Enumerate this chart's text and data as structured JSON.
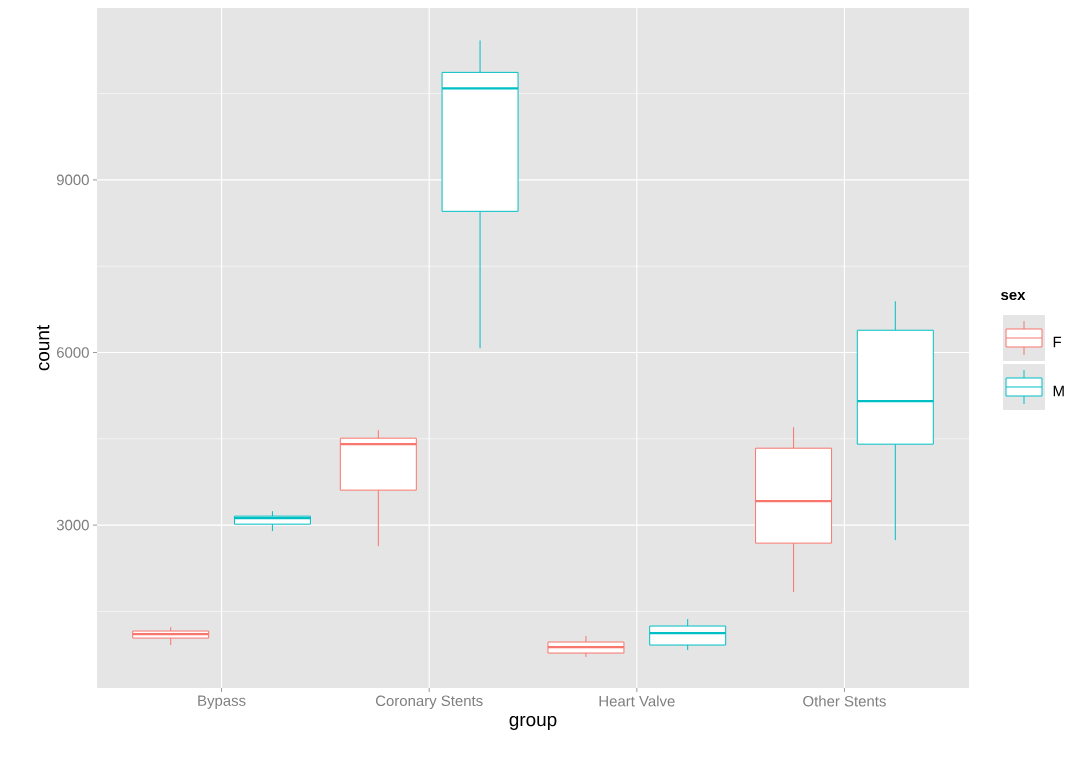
{
  "chart_data": {
    "type": "box",
    "xlabel": "group",
    "ylabel": "count",
    "legend_title": "sex",
    "categories": [
      "Bypass",
      "Coronary Stents",
      "Heart Valve",
      "Other Stents"
    ],
    "ylim": [
      169,
      11988
    ],
    "yticks": [
      {
        "value": 1500,
        "label": null
      },
      3000,
      {
        "value": 4500,
        "label": null
      },
      6000,
      {
        "value": 7500,
        "label": null
      },
      9000,
      {
        "value": 10500,
        "label": null
      }
    ],
    "grid": true,
    "legend": "right",
    "series": [
      {
        "name": "F",
        "color": "#f8766d",
        "boxes": [
          {
            "low": 916,
            "q1": 1037,
            "median": 1107,
            "q3": 1159,
            "high": 1228
          },
          {
            "low": 2635,
            "q1": 3608,
            "median": 4407,
            "q3": 4511,
            "high": 4650
          },
          {
            "low": 707,
            "q1": 777,
            "median": 881,
            "q3": 968,
            "high": 1072
          },
          {
            "low": 1836,
            "q1": 2687,
            "median": 3417,
            "q3": 4337,
            "high": 4702
          }
        ]
      },
      {
        "name": "M",
        "color": "#00bfc4",
        "boxes": [
          {
            "low": 2896,
            "q1": 3017,
            "median": 3122,
            "q3": 3156,
            "high": 3243
          },
          {
            "low": 6075,
            "q1": 8454,
            "median": 10590,
            "q3": 10869,
            "high": 11424
          },
          {
            "low": 829,
            "q1": 916,
            "median": 1124,
            "q3": 1246,
            "high": 1367
          },
          {
            "low": 2739,
            "q1": 4407,
            "median": 5154,
            "q3": 6387,
            "high": 6891
          }
        ]
      }
    ]
  }
}
